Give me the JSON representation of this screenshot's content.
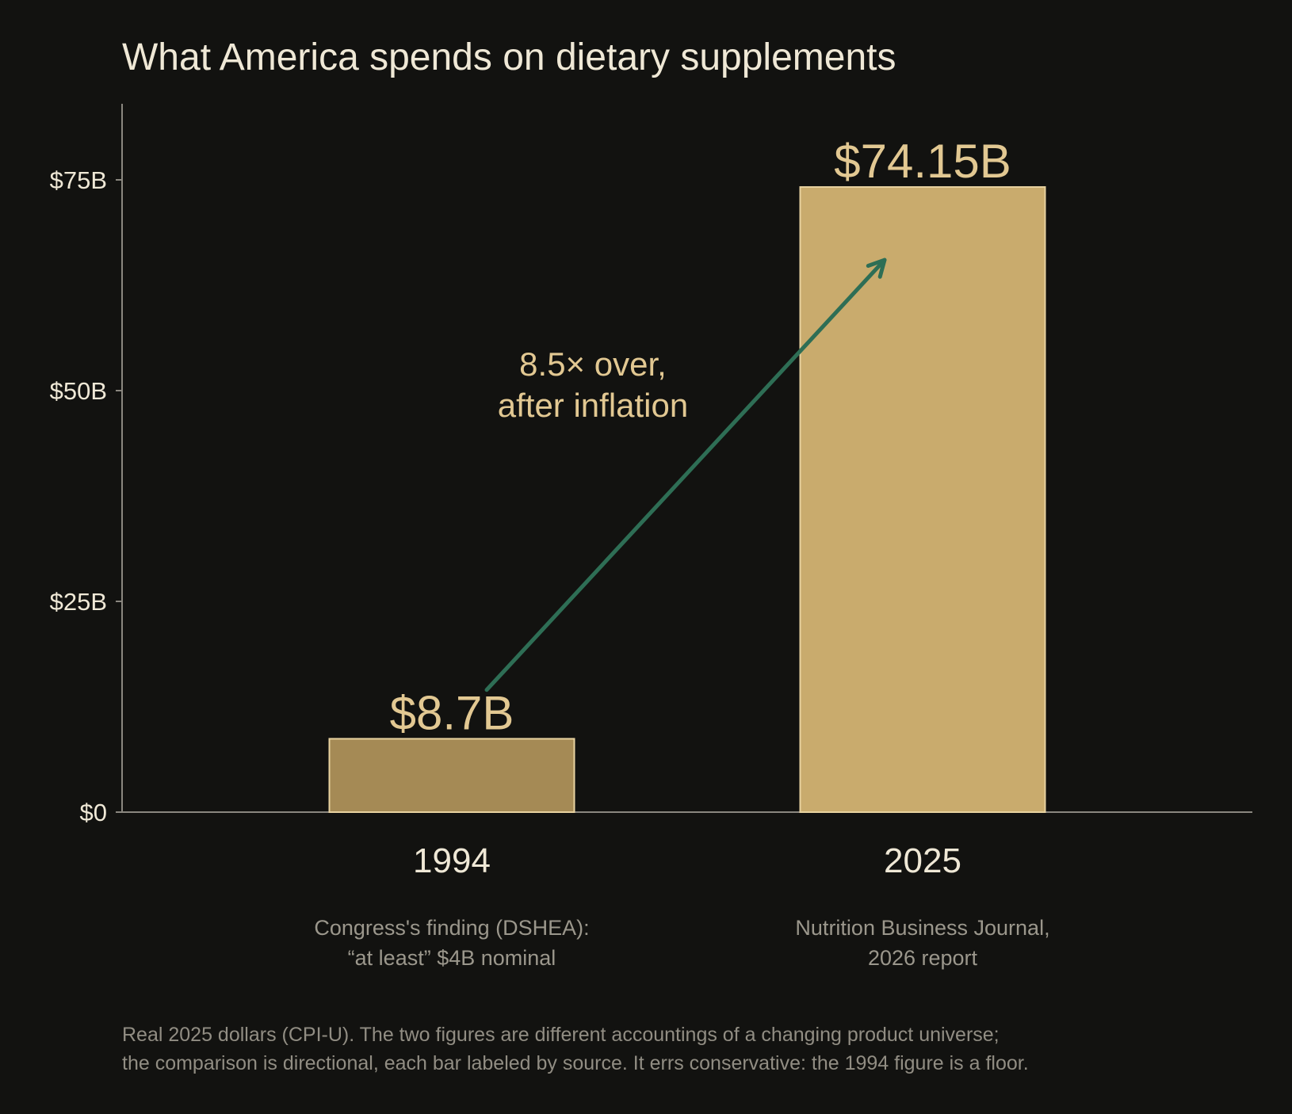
{
  "chart_data": {
    "type": "bar",
    "title": "What America spends on dietary supplements",
    "categories": [
      "1994",
      "2025"
    ],
    "values": [
      8.7,
      74.15
    ],
    "value_labels": [
      "$8.7B",
      "$74.15B"
    ],
    "bar_colors": [
      "#a58a55",
      "#c9ab6d"
    ],
    "bar_edge_color": "#e8d2a0",
    "ylim": [
      0,
      84
    ],
    "yticks": [
      0,
      25,
      50,
      75
    ],
    "ytick_labels": [
      "$0",
      "$25B",
      "$50B",
      "$75B"
    ],
    "grid": false,
    "source_notes": [
      [
        "Congress's finding (DSHEA):",
        "“at least” $4B nominal"
      ],
      [
        "Nutrition Business Journal,",
        "2026 report"
      ]
    ],
    "annotation": {
      "lines": [
        "8.5× over,",
        "after inflation"
      ],
      "arrow_from": {
        "category": "1994",
        "value": 14.5
      },
      "arrow_to": {
        "category": "2025",
        "value": 65.5
      },
      "arrow_color": "#2e6e55"
    },
    "footnote": [
      "Real 2025 dollars (CPI-U). The two figures are different accountings of a changing product universe;",
      "the comparison is directional, each bar labeled by source. It errs conservative: the 1994 figure is a floor."
    ]
  }
}
